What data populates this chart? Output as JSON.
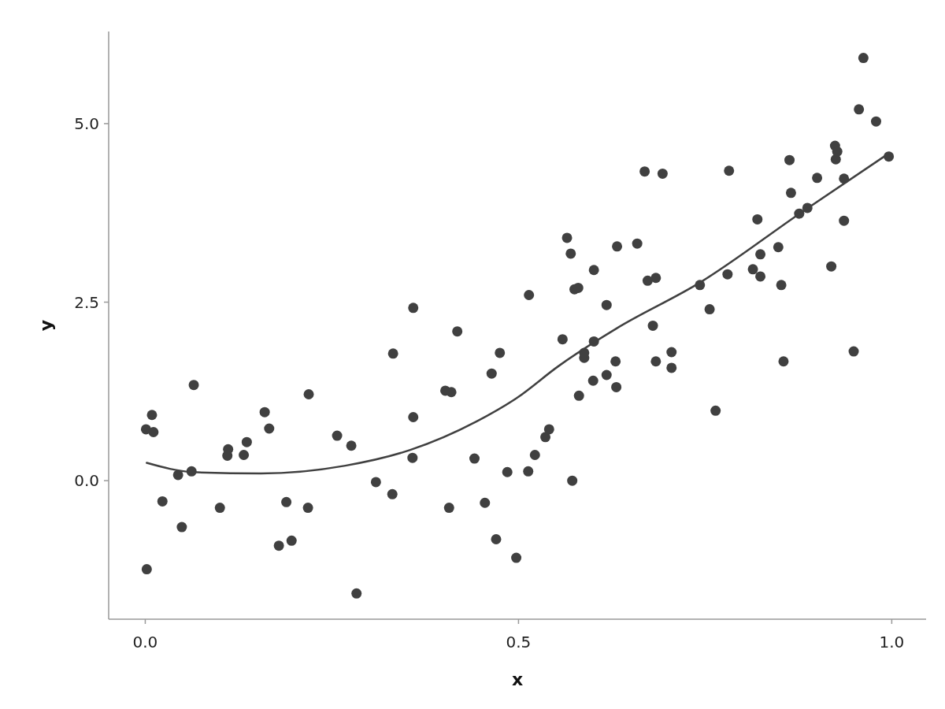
{
  "chart_data": {
    "type": "scatter",
    "xlabel": "x",
    "ylabel": "y",
    "xlim": [
      -0.049,
      1.046
    ],
    "ylim": [
      -1.94,
      6.29
    ],
    "xticks": [
      {
        "value": 0,
        "label": "0.0"
      },
      {
        "value": 0.5,
        "label": "0.5"
      },
      {
        "value": 1,
        "label": "1.0"
      }
    ],
    "yticks": [
      {
        "value": 0,
        "label": "0.0"
      },
      {
        "value": 2.5,
        "label": "2.5"
      },
      {
        "value": 5,
        "label": "5.0"
      }
    ],
    "grid": false,
    "series": [
      {
        "color": "#404040",
        "marker": "circle",
        "x": [
          0.001,
          0.009,
          0.011,
          0.002,
          0.023,
          0.044,
          0.049,
          0.062,
          0.065,
          0.1,
          0.11,
          0.111,
          0.132,
          0.136,
          0.16,
          0.166,
          0.179,
          0.189,
          0.196,
          0.218,
          0.219,
          0.257,
          0.276,
          0.283,
          0.309,
          0.331,
          0.332,
          0.358,
          0.359,
          0.359,
          0.402,
          0.407,
          0.41,
          0.418,
          0.441,
          0.455,
          0.464,
          0.47,
          0.475,
          0.485,
          0.497,
          0.513,
          0.514,
          0.522,
          0.536,
          0.541,
          0.559,
          0.565,
          0.57,
          0.572,
          0.575,
          0.58,
          0.581,
          0.588,
          0.588,
          0.6,
          0.601,
          0.601,
          0.618,
          0.618,
          0.63,
          0.631,
          0.632,
          0.659,
          0.669,
          0.673,
          0.68,
          0.684,
          0.684,
          0.693,
          0.705,
          0.705,
          0.743,
          0.756,
          0.764,
          0.78,
          0.782,
          0.814,
          0.82,
          0.824,
          0.824,
          0.848,
          0.852,
          0.855,
          0.863,
          0.865,
          0.876,
          0.887,
          0.9,
          0.919,
          0.924,
          0.925,
          0.927,
          0.936,
          0.936,
          0.949,
          0.956,
          0.962,
          0.979,
          0.996
        ],
        "values": [
          0.72,
          0.92,
          0.68,
          -1.24,
          -0.29,
          0.08,
          -0.65,
          0.13,
          1.34,
          -0.38,
          0.35,
          0.44,
          0.36,
          0.54,
          0.96,
          0.73,
          -0.91,
          -0.3,
          -0.84,
          -0.38,
          1.21,
          0.63,
          0.49,
          -1.58,
          -0.02,
          -0.19,
          1.78,
          0.32,
          0.89,
          2.42,
          1.26,
          -0.38,
          1.24,
          2.09,
          0.31,
          -0.31,
          1.5,
          -0.82,
          1.79,
          0.12,
          -1.08,
          0.13,
          2.6,
          0.36,
          0.61,
          0.72,
          1.98,
          3.4,
          3.18,
          0.0,
          2.68,
          2.7,
          1.19,
          1.72,
          1.79,
          1.4,
          1.95,
          2.95,
          1.48,
          2.46,
          1.67,
          1.31,
          3.28,
          3.32,
          4.33,
          2.8,
          2.17,
          2.84,
          1.67,
          4.3,
          1.8,
          1.58,
          2.74,
          2.4,
          0.98,
          2.89,
          4.34,
          2.96,
          3.66,
          2.86,
          3.17,
          3.27,
          2.74,
          1.67,
          4.49,
          4.03,
          3.74,
          3.82,
          4.24,
          3.0,
          4.69,
          4.5,
          4.61,
          3.64,
          4.23,
          1.81,
          5.2,
          5.92,
          5.03,
          4.54
        ]
      },
      {
        "type": "line",
        "color": "#404040",
        "marker": "none",
        "line_style": "solid",
        "x": [
          0.002,
          0.064,
          0.155,
          0.268,
          0.355,
          0.444,
          0.498,
          0.553,
          0.631,
          0.744,
          0.878,
          0.997
        ],
        "values": [
          0.25,
          0.12,
          0.1,
          0.21,
          0.43,
          0.83,
          1.16,
          1.6,
          2.13,
          2.78,
          3.75,
          4.59
        ]
      }
    ]
  }
}
